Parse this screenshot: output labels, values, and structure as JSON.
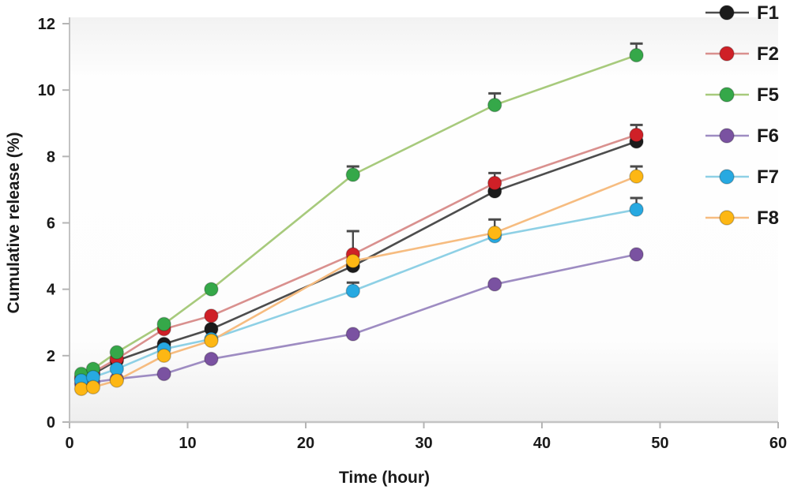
{
  "chart_data": {
    "type": "line",
    "title": "",
    "xlabel": "Time (hour)",
    "ylabel": "Cumulative release (%)",
    "xlim": [
      0,
      60
    ],
    "ylim": [
      0,
      12
    ],
    "xticks": [
      0,
      10,
      20,
      30,
      40,
      50,
      60
    ],
    "yticks": [
      0,
      2,
      4,
      6,
      8,
      10,
      12
    ],
    "grid": false,
    "legend_position": "right",
    "x": [
      1,
      2,
      4,
      8,
      12,
      24,
      36,
      48
    ],
    "series": [
      {
        "name": "F1",
        "line_color": "#4d4d4d",
        "marker_color": "#1b1b1b",
        "values": [
          1.3,
          1.45,
          1.85,
          2.35,
          2.8,
          4.7,
          6.95,
          8.45
        ],
        "errors": [
          0,
          0,
          0,
          0,
          0,
          0,
          0,
          0
        ]
      },
      {
        "name": "F2",
        "line_color": "#d9908e",
        "marker_color": "#cf2027",
        "values": [
          1.35,
          1.5,
          1.9,
          2.8,
          3.2,
          5.05,
          7.2,
          8.65
        ],
        "errors": [
          0,
          0,
          0,
          0,
          0,
          0.7,
          0.3,
          0.3
        ]
      },
      {
        "name": "F5",
        "line_color": "#a7ca7c",
        "marker_color": "#35a849",
        "values": [
          1.45,
          1.6,
          2.1,
          2.95,
          4.0,
          7.45,
          9.55,
          11.05
        ],
        "errors": [
          0,
          0,
          0,
          0,
          0,
          0.25,
          0.35,
          0.35
        ]
      },
      {
        "name": "F6",
        "line_color": "#9e8cc2",
        "marker_color": "#7a52a1",
        "values": [
          1.15,
          1.2,
          1.3,
          1.45,
          1.9,
          2.65,
          4.15,
          5.05
        ],
        "errors": [
          0,
          0,
          0,
          0,
          0,
          0,
          0,
          0
        ]
      },
      {
        "name": "F7",
        "line_color": "#8ed0e5",
        "marker_color": "#27a9e1",
        "values": [
          1.25,
          1.35,
          1.6,
          2.2,
          2.5,
          3.95,
          5.6,
          6.4
        ],
        "errors": [
          0,
          0,
          0,
          0,
          0,
          0.25,
          0,
          0.35
        ]
      },
      {
        "name": "F8",
        "line_color": "#f6bc80",
        "marker_color": "#fdb714",
        "values": [
          1.0,
          1.05,
          1.25,
          2.0,
          2.45,
          4.85,
          5.7,
          7.4
        ],
        "errors": [
          0,
          0,
          0,
          0,
          0,
          0,
          0.4,
          0.3
        ]
      }
    ],
    "error_bar_color": "#4a4a4a"
  }
}
